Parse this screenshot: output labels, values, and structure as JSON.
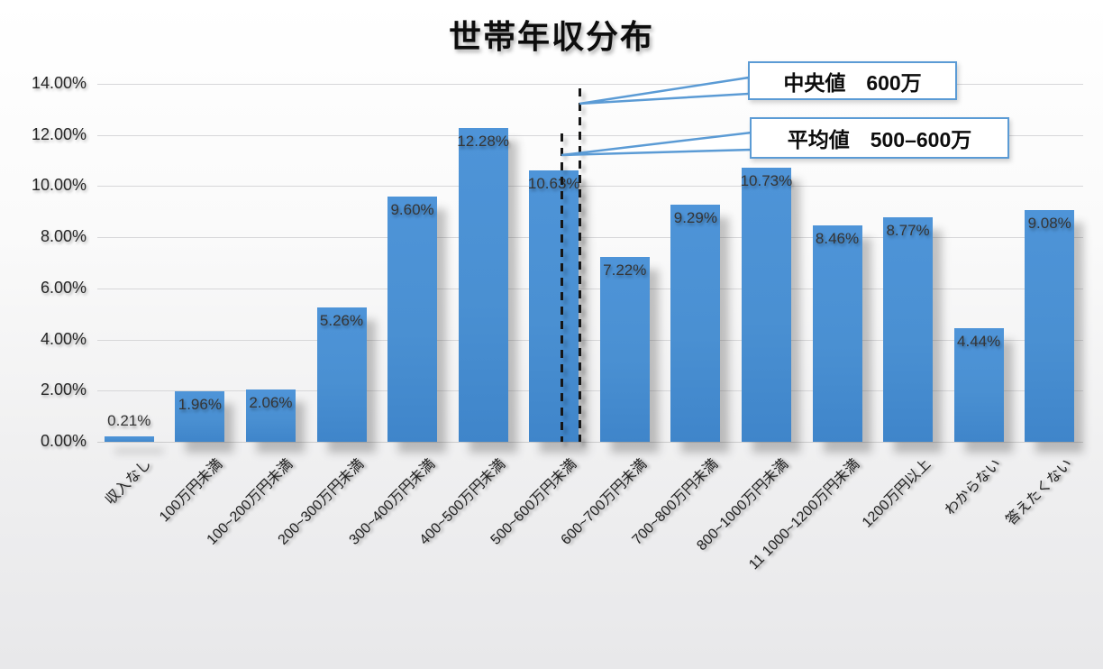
{
  "chart_data": {
    "type": "bar",
    "title": "世帯年収分布",
    "xlabel": "",
    "ylabel": "",
    "categories": [
      "収入なし",
      "100万円未満",
      "100~200万円未満",
      "200~300万円未満",
      "300~400万円未満",
      "400~500万円未満",
      "500~600万円未満",
      "600~700万円未満",
      "700~800万円未満",
      "800~1000万円未満",
      "11 1000~1200万円未満",
      "1200万円以上",
      "わからない",
      "答えたくない"
    ],
    "values": [
      0.21,
      1.96,
      2.06,
      5.26,
      9.6,
      12.28,
      10.63,
      7.22,
      9.29,
      10.73,
      8.46,
      8.77,
      4.44,
      9.08
    ],
    "labels": [
      "0.21%",
      "1.96%",
      "2.06%",
      "5.26%",
      "9.60%",
      "12.28%",
      "10.63%",
      "7.22%",
      "9.29%",
      "10.73%",
      "8.46%",
      "8.77%",
      "4.44%",
      "9.08%"
    ],
    "y_ticks": [
      "14.00%",
      "12.00%",
      "10.00%",
      "8.00%",
      "6.00%",
      "4.00%",
      "2.00%",
      "0.00%"
    ],
    "ylim": [
      0,
      14
    ],
    "grid": true,
    "legend": false,
    "bar_color": "#4A90D2",
    "annotations": [
      {
        "text": "中央値　600万",
        "line": "median",
        "line_style": "dashed"
      },
      {
        "text": "平均値　500–600万",
        "line": "mean",
        "line_style": "dashed"
      }
    ],
    "reference_lines": [
      {
        "name": "median-line",
        "style": "dashed",
        "color": "#161616",
        "at_category": "500~600万円未満 / 600~700万円未満 boundary"
      },
      {
        "name": "mean-line",
        "style": "dashed",
        "color": "#161616",
        "at_category": "500~600万円未満"
      }
    ],
    "accent_color": "#5B9BD5"
  }
}
